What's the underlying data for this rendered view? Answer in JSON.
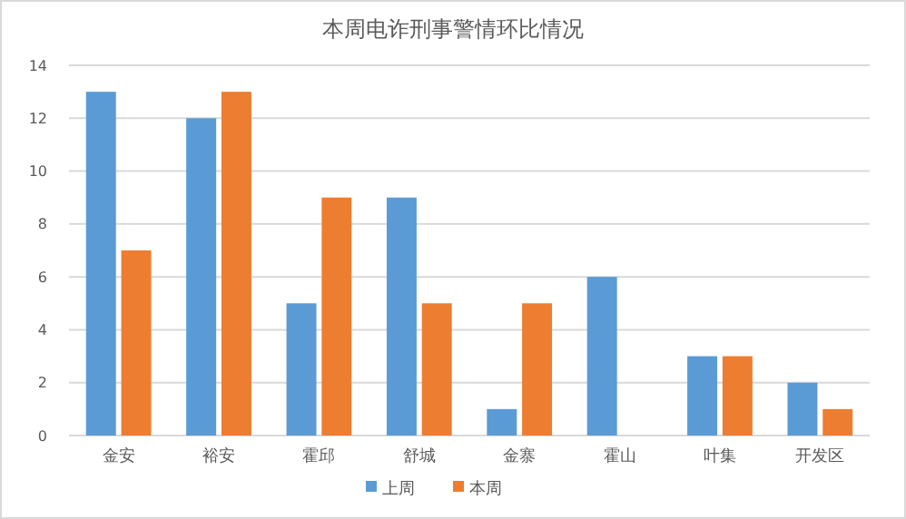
{
  "chart_data": {
    "type": "bar",
    "title": "本周电诈刑事警情环比情况",
    "categories": [
      "金安",
      "裕安",
      "霍邱",
      "舒城",
      "金寨",
      "霍山",
      "叶集",
      "开发区"
    ],
    "series": [
      {
        "name": "上周",
        "color": "#5b9bd5",
        "values": [
          13,
          12,
          5,
          9,
          1,
          6,
          3,
          2
        ]
      },
      {
        "name": "本周",
        "color": "#ed7d31",
        "values": [
          7,
          13,
          9,
          5,
          5,
          0,
          3,
          1
        ]
      }
    ],
    "ylim": [
      0,
      14
    ],
    "yticks": [
      0,
      2,
      4,
      6,
      8,
      10,
      12,
      14
    ],
    "grid": "y",
    "legend": "bottom"
  }
}
